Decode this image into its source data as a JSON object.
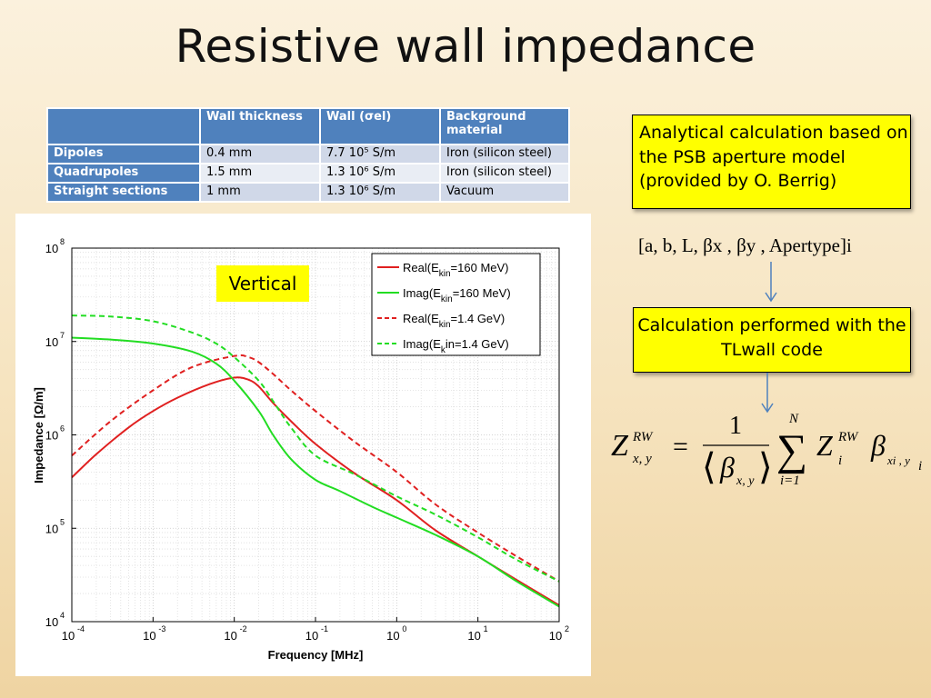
{
  "title": "Resistive wall impedance",
  "table": {
    "headers": [
      "",
      "Wall thickness",
      "Wall (σel)",
      "Background material"
    ],
    "rows": [
      {
        "name": "Dipoles",
        "thickness": "0.4 mm",
        "conductivity": "7.7 10⁵ S/m",
        "material": "Iron (silicon steel)"
      },
      {
        "name": "Quadrupoles",
        "thickness": "1.5 mm",
        "conductivity": "1.3 10⁶ S/m",
        "material": "Iron (silicon steel)"
      },
      {
        "name": "Straight sections",
        "thickness": "1 mm",
        "conductivity": "1.3 10⁶ S/m",
        "material": "Vacuum"
      }
    ]
  },
  "box_analytical": "Analytical calculation based on the PSB aperture model (provided by O. Berrig)",
  "params_text": "[a, b, L, βx , βy , Apertype]i",
  "box_tlwall": "Calculation performed with the TLwall code",
  "formula": {
    "lhs": "Z",
    "sup": "RW",
    "sub": "x, y",
    "eq": "=",
    "num": "1",
    "den_beta": "β",
    "den_sub": "x, y",
    "sum_top": "N",
    "sum_bot": "i=1",
    "zi": "Z",
    "zi_sub": "i",
    "zi_sup": "RW",
    "beta": "β",
    "beta_sub": "xi , y",
    "beta_sub2": "i"
  },
  "vertical_label": "Vertical",
  "colors": {
    "red": "#e02020",
    "green": "#22dd22",
    "header_blue": "#4f81bd",
    "callout_yellow": "#ffff00"
  },
  "chart_data": {
    "type": "line",
    "xlabel": "Frequency [MHz]",
    "ylabel": "Impedance [Ω/m]",
    "x_scale": "log",
    "y_scale": "log",
    "xlim": [
      0.0001,
      100
    ],
    "ylim": [
      10000,
      100000000
    ],
    "x_ticks": [
      {
        "base": "10",
        "exp": "-4",
        "value": 0.0001
      },
      {
        "base": "10",
        "exp": "-3",
        "value": 0.001
      },
      {
        "base": "10",
        "exp": "-2",
        "value": 0.01
      },
      {
        "base": "10",
        "exp": "-1",
        "value": 0.1
      },
      {
        "base": "10",
        "exp": "0",
        "value": 1
      },
      {
        "base": "10",
        "exp": "1",
        "value": 10
      },
      {
        "base": "10",
        "exp": "2",
        "value": 100
      }
    ],
    "y_ticks": [
      {
        "base": "10",
        "exp": "4",
        "value": 10000
      },
      {
        "base": "10",
        "exp": "5",
        "value": 100000
      },
      {
        "base": "10",
        "exp": "6",
        "value": 1000000
      },
      {
        "base": "10",
        "exp": "7",
        "value": 10000000
      },
      {
        "base": "10",
        "exp": "8",
        "value": 100000000
      }
    ],
    "grid": true,
    "legend_position": "top-right",
    "series": [
      {
        "legend": {
          "pre": "Real(E",
          "sub": "kin",
          "post": "=160 MeV)"
        },
        "color": "#e02020",
        "dash": "solid",
        "x": [
          0.0001,
          0.0002,
          0.0005,
          0.001,
          0.002,
          0.005,
          0.01,
          0.015,
          0.02,
          0.03,
          0.05,
          0.1,
          0.3,
          1,
          3,
          10,
          30,
          100
        ],
        "y": [
          350000,
          620000,
          1200000,
          1800000,
          2500000,
          3500000,
          4100000,
          3900000,
          3300000,
          2200000,
          1400000,
          800000,
          390000,
          200000,
          95000,
          50000,
          28000,
          15000
        ]
      },
      {
        "legend": {
          "pre": "Imag(E",
          "sub": "kin",
          "post": "=160 MeV)"
        },
        "color": "#22dd22",
        "dash": "solid",
        "x": [
          0.0001,
          0.0003,
          0.001,
          0.003,
          0.006,
          0.01,
          0.02,
          0.03,
          0.05,
          0.1,
          0.2,
          0.5,
          1,
          3,
          10,
          30,
          100
        ],
        "y": [
          11000000,
          10500000,
          9500000,
          7800000,
          5800000,
          3800000,
          1800000,
          1000000,
          550000,
          330000,
          250000,
          170000,
          130000,
          85000,
          50000,
          27000,
          14500
        ]
      },
      {
        "legend": {
          "pre": "Real(E",
          "sub": "kin",
          "post": "=1.4 GeV)"
        },
        "color": "#e02020",
        "dash": "dashed",
        "x": [
          0.0001,
          0.0003,
          0.001,
          0.003,
          0.01,
          0.015,
          0.02,
          0.03,
          0.05,
          0.1,
          0.3,
          1,
          3,
          10,
          30,
          100
        ],
        "y": [
          600000,
          1400000,
          3000000,
          5300000,
          7000000,
          6800000,
          6000000,
          4500000,
          3000000,
          1800000,
          850000,
          400000,
          180000,
          90000,
          50000,
          27000
        ]
      },
      {
        "legend": {
          "pre": "Imag(E",
          "sub": "k",
          "post": "in=1.4 GeV)"
        },
        "color": "#22dd22",
        "dash": "dashed",
        "x": [
          0.0001,
          0.0003,
          0.001,
          0.003,
          0.006,
          0.01,
          0.02,
          0.03,
          0.05,
          0.1,
          0.3,
          1,
          3,
          10,
          30,
          100
        ],
        "y": [
          19000000,
          18500000,
          16500000,
          12500000,
          9500000,
          6800000,
          3800000,
          2300000,
          1200000,
          600000,
          380000,
          220000,
          140000,
          80000,
          46000,
          27000
        ]
      }
    ]
  }
}
